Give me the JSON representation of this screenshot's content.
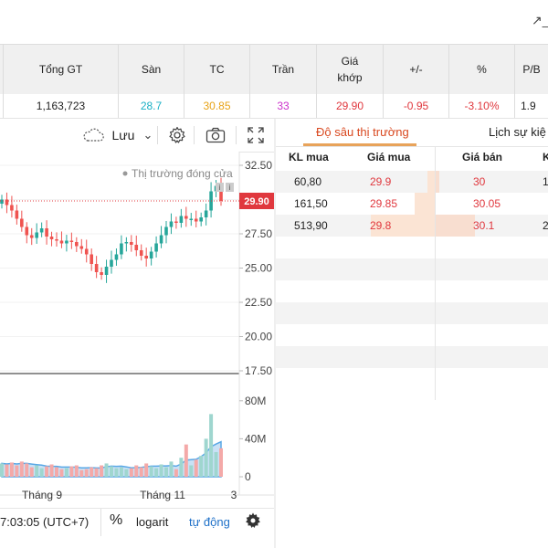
{
  "header": {
    "ext_icon": "↗",
    "ext_trail": "_"
  },
  "summary": {
    "columns": [
      "",
      "Tổng GT",
      "Sàn",
      "TC",
      "Trần",
      "Giá khớp",
      "+/-",
      "%",
      "P/B"
    ],
    "values": [
      "",
      "1,163,723",
      "28.7",
      "30.85",
      "33",
      "29.90",
      "-0.95",
      "-3.10%",
      "1.9"
    ],
    "colors": [
      "#222",
      "#222",
      "#1ab0c6",
      "#e8a317",
      "#cc33cc",
      "#e0383e",
      "#e0383e",
      "#e0383e",
      "#222"
    ]
  },
  "toolbar": {
    "cloud_icon": "cloud-icon",
    "save_label": "Lưu",
    "chevron": "⌄",
    "settings_icon": "gear-icon",
    "camera_icon": "camera-icon",
    "fullscreen_icon": "fullscreen-icon"
  },
  "chart": {
    "status_text": "Thị trường đóng cửa",
    "last_price_label": "29.90",
    "price_ticks": [
      "32.50",
      "30.00",
      "27.50",
      "25.00",
      "22.50",
      "20.00",
      "17.50"
    ],
    "volume_ticks": [
      "80M",
      "40M",
      "0"
    ],
    "time_labels": [
      "Tháng 9",
      "Tháng 11",
      "3"
    ]
  },
  "chart_data": {
    "type": "line",
    "title": "",
    "y_range": [
      17.5,
      33.5
    ],
    "y_ticks": [
      32.5,
      30.0,
      27.5,
      25.0,
      22.5,
      20.0,
      17.5
    ],
    "last_price": 29.9,
    "x_labels": [
      "Tháng 9",
      "Tháng 11",
      "3"
    ],
    "series": [
      {
        "values": [
          30.0,
          29.6,
          29.2,
          28.6,
          28.0,
          27.4,
          27.2,
          27.6,
          27.9,
          27.3,
          27.1,
          27.0,
          26.8,
          27.0,
          26.9,
          26.6,
          26.4,
          26.0,
          25.3,
          24.7,
          24.5,
          25.1,
          25.6,
          26.0,
          26.8,
          26.9,
          26.7,
          26.3,
          25.9,
          25.7,
          26.2,
          26.8,
          27.4,
          28.0,
          28.4,
          28.3,
          28.8,
          28.6,
          28.6,
          28.4,
          28.7,
          29.2,
          30.6,
          31.0,
          29.9
        ]
      }
    ],
    "volume_range_millions": [
      0,
      100
    ],
    "volume_ticks": [
      "80M",
      "40M",
      "0"
    ],
    "volume_values_millions": [
      14,
      13,
      15,
      12,
      16,
      14,
      10,
      12,
      9,
      11,
      13,
      10,
      8,
      9,
      11,
      12,
      7,
      8,
      10,
      9,
      12,
      14,
      11,
      9,
      10,
      8,
      9,
      12,
      10,
      14,
      11,
      9,
      13,
      10,
      16,
      8,
      20,
      34,
      12,
      18,
      22,
      40,
      66,
      26,
      30
    ]
  },
  "bottom_bar": {
    "time_text": "7:03:05 (UTC+7)",
    "percent_label": "%",
    "log_label": "logarit",
    "auto_label": "tự động",
    "settings_icon": "gear-icon"
  },
  "depth": {
    "tab_active": "Độ sâu thị trường",
    "tab_other": "Lịch sự kiệ",
    "headers": [
      "KL mua",
      "Giá mua",
      "Giá bán",
      "K"
    ],
    "rows": [
      {
        "kl_mua": "60,80",
        "gia_mua": "29.9",
        "gia_ban": "30",
        "kl_ban": "1",
        "buy_share": 0.08,
        "sell_share": 0.11
      },
      {
        "kl_mua": "161,50",
        "gia_mua": "29.85",
        "gia_ban": "30.05",
        "kl_ban": "",
        "buy_share": 0.22,
        "sell_share": 0.0
      },
      {
        "kl_mua": "513,90",
        "gia_mua": "29.8",
        "gia_ban": "30.1",
        "kl_ban": "2",
        "buy_share": 0.7,
        "sell_share": 1.0
      }
    ]
  }
}
